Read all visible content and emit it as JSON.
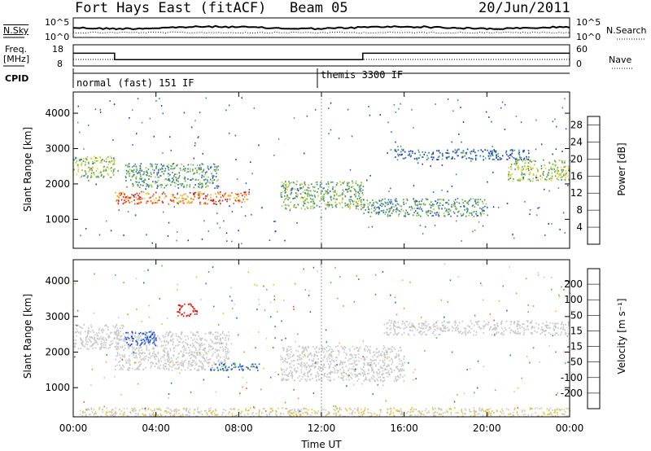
{
  "header": {
    "station": "Fort Hays East (fitACF)",
    "beam": "Beam 05",
    "date": "20/Jun/2011"
  },
  "noise_panel": {
    "left_label": "N.Sky",
    "right_label": "N.Search",
    "left_ticks": [
      "10^5",
      "10^0"
    ],
    "right_ticks": [
      "10^5",
      "10^0"
    ]
  },
  "freq_panel": {
    "left_label_line1": "Freq.",
    "left_label_line2": "[MHz]",
    "right_label": "Nave",
    "left_ticks": [
      "18",
      "8"
    ],
    "right_ticks": [
      "60",
      "0"
    ],
    "freq_levels_mhz": [
      14,
      11,
      14
    ],
    "freq_change_times_h": [
      2.0,
      14.0
    ]
  },
  "cpid_panel": {
    "label": "CPID",
    "modes": [
      {
        "name": "normal (fast) 151 IF",
        "start_h": 0
      },
      {
        "name": "themis 3300 IF",
        "start_h": 12
      }
    ]
  },
  "colors": {
    "power_scale": [
      "#1a2dd8",
      "#2e5fc6",
      "#3d8f76",
      "#5da05a",
      "#9cd03c",
      "#f0d020",
      "#f7a21c",
      "#f05a14",
      "#e8101a"
    ],
    "velocity_scale": [
      "#1030d0",
      "#1e5ae0",
      "#2a8a3a",
      "#56c233",
      "#c8c8c8",
      "#c8c8c8",
      "#f2c018",
      "#f29018",
      "#f05010",
      "#e81010"
    ]
  },
  "chart_data": [
    {
      "type": "heatmap",
      "panel": "power",
      "ylabel": "Slant Range [km]",
      "xlabel": "",
      "x_ticks": [
        "00:00",
        "04:00",
        "08:00",
        "12:00",
        "16:00",
        "20:00",
        "00:00"
      ],
      "y_ticks": [
        "1000",
        "2000",
        "3000",
        "4000"
      ],
      "xlim_h": [
        0,
        24
      ],
      "ylim_km": [
        180,
        4600
      ],
      "colorbar_label": "Power [dB]",
      "colorbar_ticks": [
        "4",
        "8",
        "12",
        "16",
        "20",
        "24",
        "28"
      ],
      "colorbar_range": [
        0,
        30
      ],
      "features": [
        {
          "t0": 0.0,
          "t1": 2.0,
          "r0": 2200,
          "r1": 2800,
          "value": 14
        },
        {
          "t0": 2.0,
          "t1": 8.5,
          "r0": 1450,
          "r1": 1800,
          "value": 24
        },
        {
          "t0": 2.5,
          "t1": 7.0,
          "r0": 1900,
          "r1": 2600,
          "value": 10
        },
        {
          "t0": 10.0,
          "t1": 14.0,
          "r0": 1300,
          "r1": 2100,
          "value": 12
        },
        {
          "t0": 14.0,
          "t1": 20.0,
          "r0": 1100,
          "r1": 1600,
          "value": 10
        },
        {
          "t0": 15.5,
          "t1": 22.0,
          "r0": 2700,
          "r1": 3000,
          "value": 6
        },
        {
          "t0": 21.0,
          "t1": 24.0,
          "r0": 2100,
          "r1": 2700,
          "value": 14
        }
      ]
    },
    {
      "type": "heatmap",
      "panel": "velocity",
      "ylabel": "Slant Range [km]",
      "xlabel": "Time UT",
      "x_ticks": [
        "00:00",
        "04:00",
        "08:00",
        "12:00",
        "16:00",
        "20:00",
        "00:00"
      ],
      "y_ticks": [
        "1000",
        "2000",
        "3000",
        "4000"
      ],
      "xlim_h": [
        0,
        24
      ],
      "ylim_km": [
        180,
        4600
      ],
      "colorbar_label": "Velocity [m s⁻¹]",
      "colorbar_ticks": [
        "200",
        "100",
        "50",
        "15",
        "-15",
        "-50",
        "-100",
        "-200"
      ],
      "colorbar_range": [
        -250,
        250
      ],
      "features": [
        {
          "t0": 0.0,
          "t1": 2.5,
          "r0": 2100,
          "r1": 2800,
          "value": 0
        },
        {
          "t0": 2.0,
          "t1": 7.5,
          "r0": 1500,
          "r1": 2600,
          "value": 0
        },
        {
          "t0": 2.5,
          "t1": 4.0,
          "r0": 2200,
          "r1": 2600,
          "value": 180
        },
        {
          "t0": 6.5,
          "t1": 9.0,
          "r0": 1500,
          "r1": 1700,
          "value": 160
        },
        {
          "t0": 5.0,
          "t1": 6.0,
          "r0": 3000,
          "r1": 3400,
          "value": -220
        },
        {
          "t0": 10.0,
          "t1": 16.0,
          "r0": 1200,
          "r1": 2200,
          "value": 0
        },
        {
          "t0": 15.0,
          "t1": 24.0,
          "r0": 2500,
          "r1": 2900,
          "value": 0
        },
        {
          "t0": 0.0,
          "t1": 24.0,
          "r0": 200,
          "r1": 450,
          "value": -40
        }
      ]
    }
  ]
}
